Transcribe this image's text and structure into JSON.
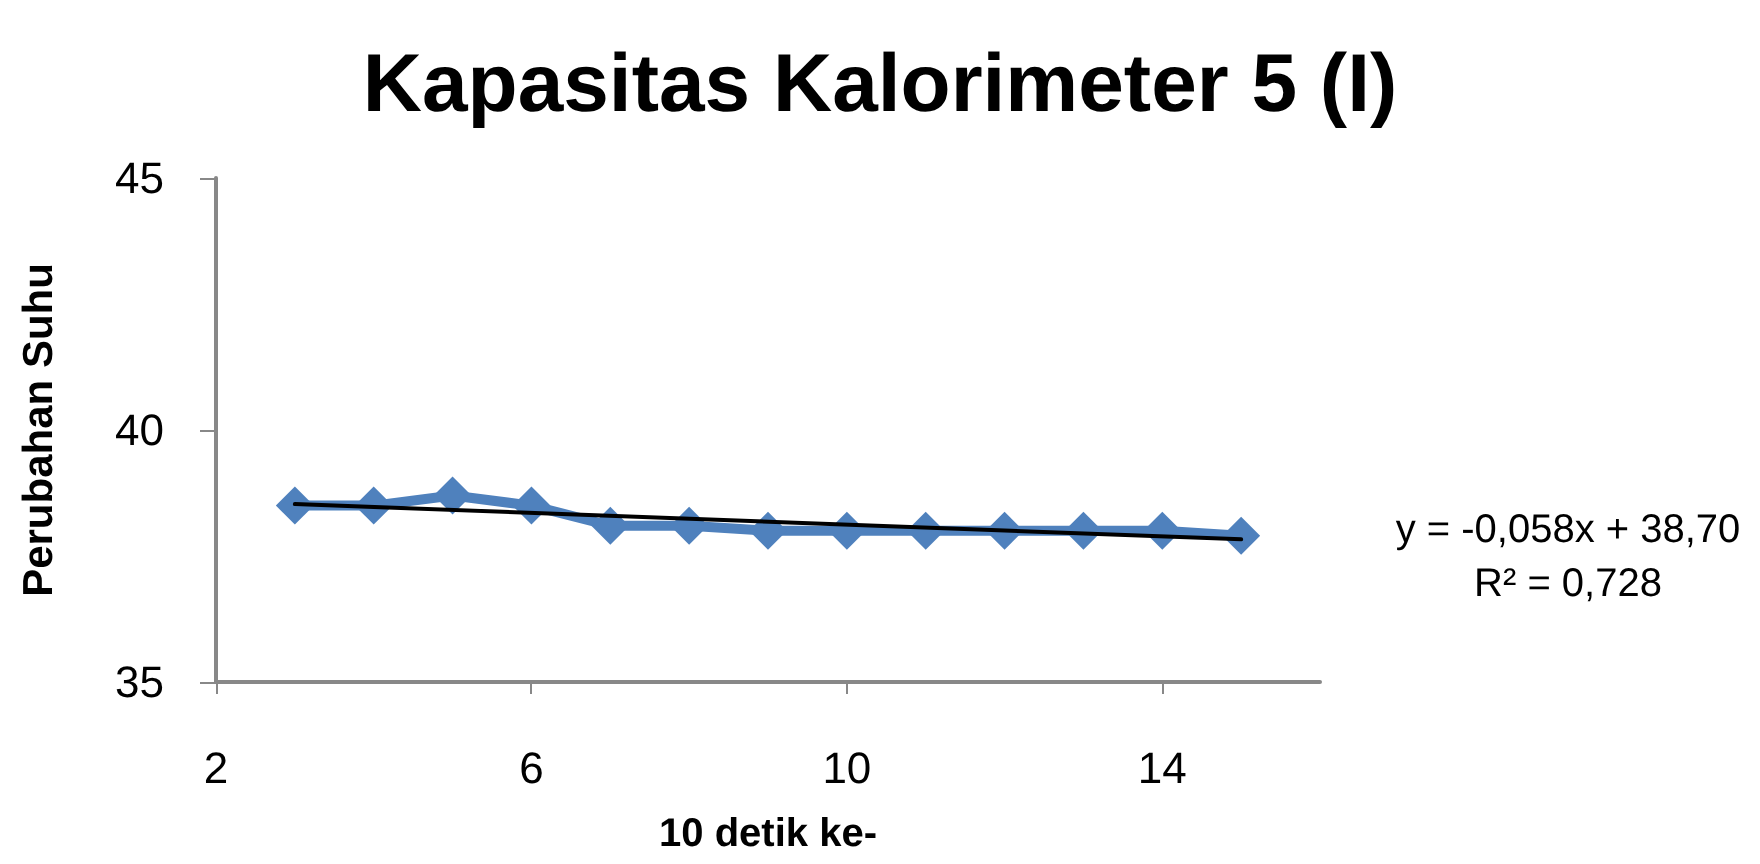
{
  "chart_data": {
    "type": "line",
    "title": "Kapasitas Kalorimeter 5 (I)",
    "xlabel": "10 detik ke-",
    "ylabel": "Perubahan Suhu",
    "x": [
      3,
      4,
      5,
      6,
      7,
      8,
      9,
      10,
      11,
      12,
      13,
      14,
      15
    ],
    "series": [
      {
        "color": "#4f81bd",
        "marker": "diamond",
        "values": [
          38.5,
          38.5,
          38.7,
          38.5,
          38.1,
          38.1,
          38.0,
          38.0,
          38.0,
          38.0,
          38.0,
          38.0,
          37.9
        ]
      },
      {
        "type": "line",
        "x": [
          3,
          15
        ],
        "values": [
          38.53,
          37.83
        ],
        "color": "#000000",
        "marker": "none"
      }
    ],
    "xlim": [
      2,
      16
    ],
    "xticks": [
      2,
      6,
      10,
      14
    ],
    "ylim": [
      35,
      45
    ],
    "yticks": [
      35,
      40,
      45
    ],
    "annotations": [
      "y = -0,058x + 38,70",
      "R² = 0,728"
    ],
    "grid": false,
    "line_style": "solid"
  }
}
